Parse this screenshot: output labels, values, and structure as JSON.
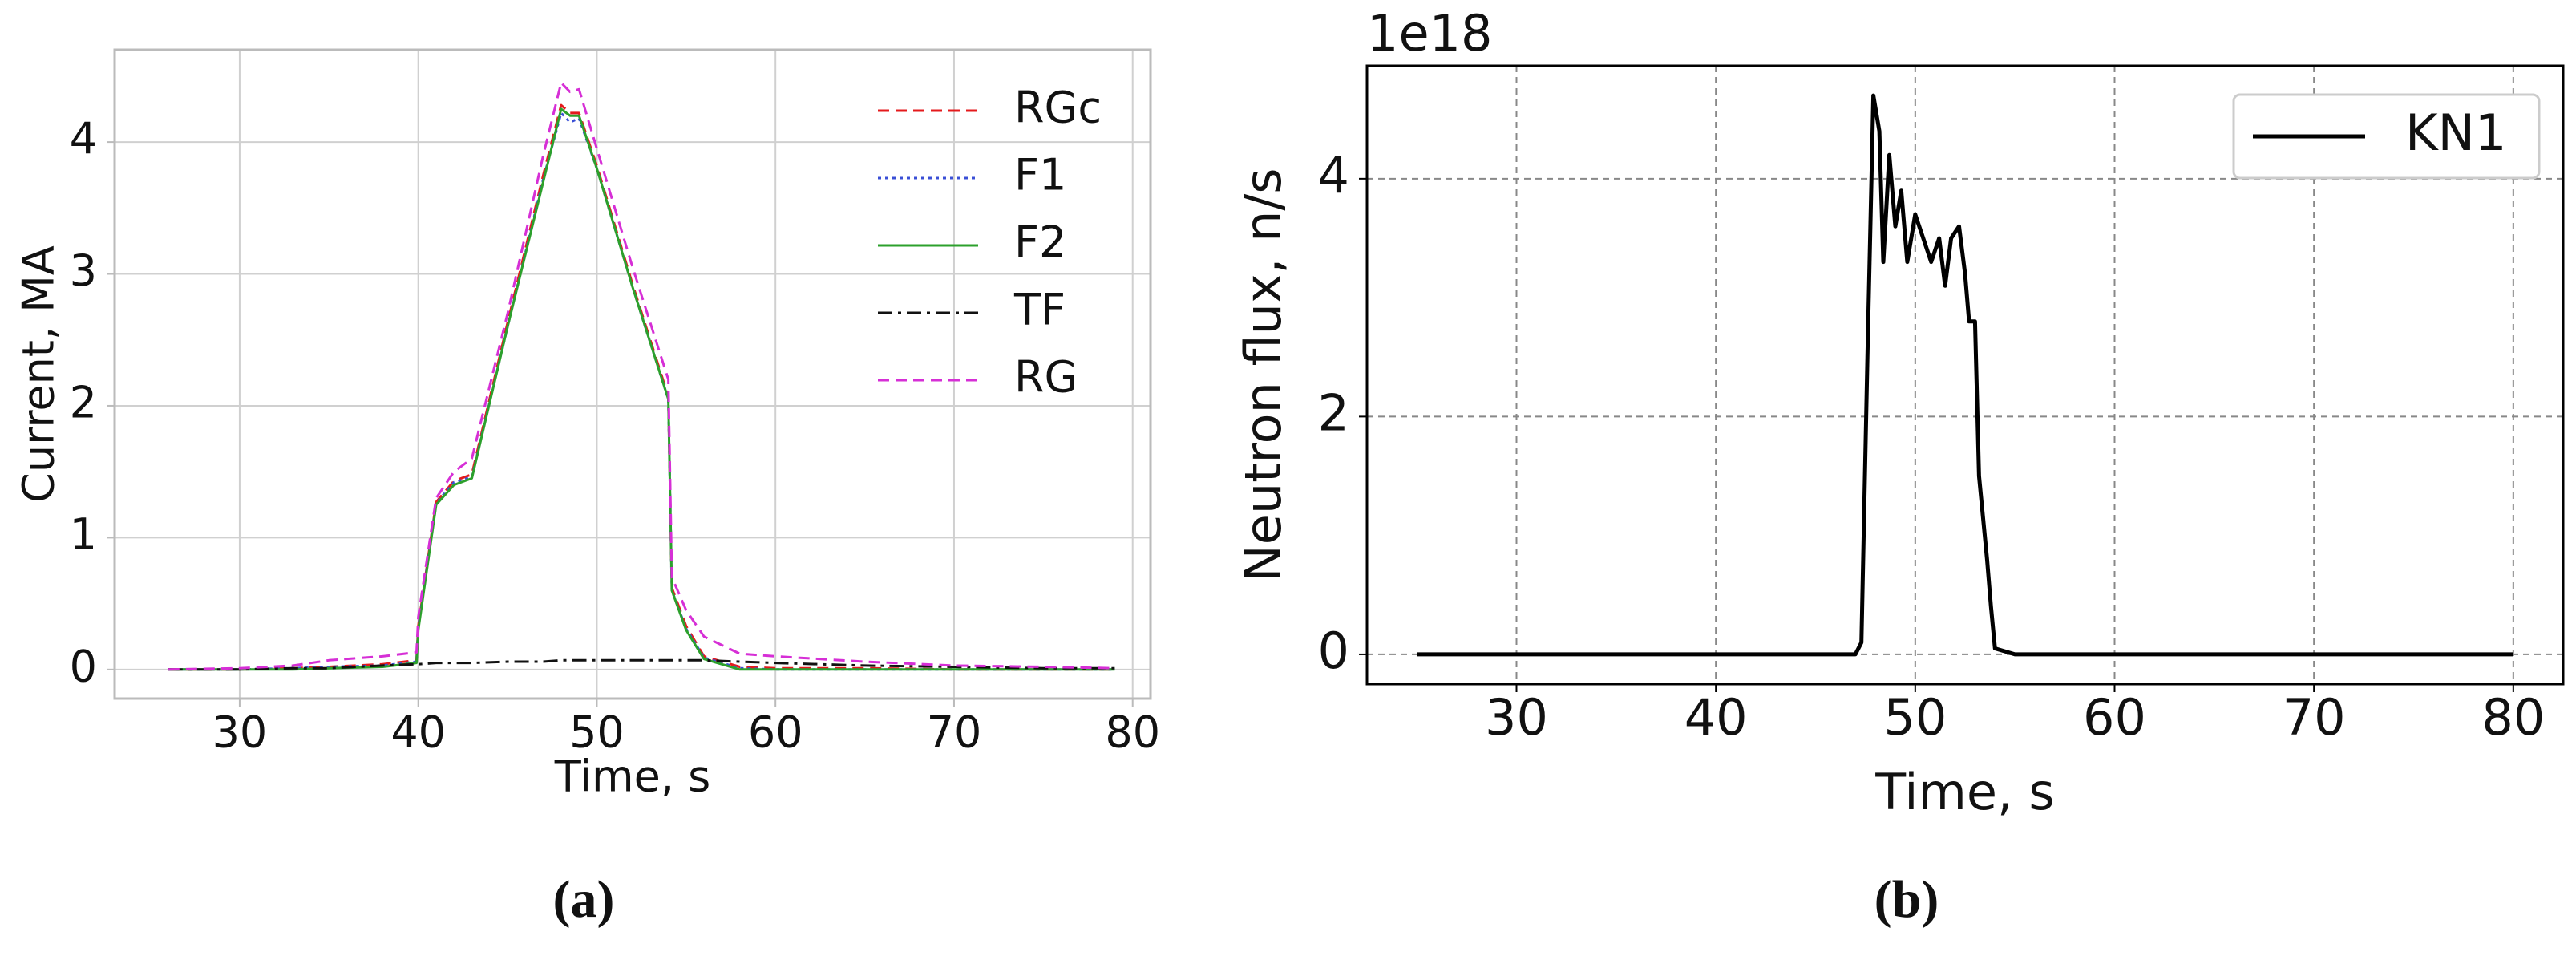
{
  "chart_data": [
    {
      "type": "line",
      "caption": "(a)",
      "xlabel": "Time, s",
      "ylabel": "Current, MA",
      "xlim": [
        23,
        81
      ],
      "ylim": [
        -0.22,
        4.7
      ],
      "xticks": [
        30,
        40,
        50,
        60,
        70,
        80
      ],
      "yticks": [
        0,
        1,
        2,
        3,
        4
      ],
      "grid": true,
      "legend": "upper right",
      "x": [
        26,
        30,
        33,
        35,
        38,
        39.9,
        40,
        41,
        42,
        43,
        45,
        47,
        48,
        48.5,
        49,
        50,
        52,
        54,
        54.2,
        55,
        56,
        58,
        60,
        65,
        70,
        75,
        79
      ],
      "series": [
        {
          "name": "RGc",
          "color": "#e41a1c",
          "style": "dashed",
          "values": [
            0,
            0,
            0.01,
            0.02,
            0.04,
            0.07,
            0.33,
            1.27,
            1.43,
            1.48,
            2.63,
            3.75,
            4.28,
            4.22,
            4.22,
            3.82,
            2.92,
            2.07,
            0.62,
            0.33,
            0.1,
            0.02,
            0.01,
            0.01,
            0,
            0,
            0
          ]
        },
        {
          "name": "F1",
          "color": "#3a4fd6",
          "style": "dotted",
          "values": [
            0,
            0,
            0.01,
            0.02,
            0.03,
            0.06,
            0.32,
            1.26,
            1.42,
            1.46,
            2.6,
            3.72,
            4.22,
            4.15,
            4.18,
            3.8,
            2.9,
            2.05,
            0.6,
            0.31,
            0.09,
            0.01,
            0,
            0,
            0,
            0,
            0
          ]
        },
        {
          "name": "F2",
          "color": "#2ca02c",
          "style": "solid",
          "values": [
            0,
            0,
            0,
            0.01,
            0.02,
            0.05,
            0.3,
            1.25,
            1.4,
            1.45,
            2.6,
            3.7,
            4.25,
            4.2,
            4.2,
            3.8,
            2.9,
            2.05,
            0.6,
            0.3,
            0.08,
            0,
            0,
            0,
            0,
            0,
            0
          ]
        },
        {
          "name": "TF",
          "color": "#111111",
          "style": "dashdot",
          "values": [
            0,
            0,
            0.01,
            0.01,
            0.03,
            0.04,
            0.04,
            0.05,
            0.05,
            0.05,
            0.06,
            0.06,
            0.07,
            0.07,
            0.07,
            0.07,
            0.07,
            0.07,
            0.07,
            0.07,
            0.07,
            0.06,
            0.05,
            0.03,
            0.02,
            0.01,
            0.01
          ]
        },
        {
          "name": "RG",
          "color": "#d62fd6",
          "style": "dashed",
          "values": [
            0,
            0.01,
            0.03,
            0.07,
            0.1,
            0.13,
            0.4,
            1.3,
            1.5,
            1.6,
            2.7,
            3.9,
            4.45,
            4.38,
            4.4,
            3.95,
            3.05,
            2.2,
            0.7,
            0.45,
            0.25,
            0.12,
            0.1,
            0.06,
            0.03,
            0.02,
            0.01
          ]
        }
      ]
    },
    {
      "type": "line",
      "caption": "(b)",
      "xlabel": "Time, s",
      "ylabel": "Neutron flux, n/s",
      "y_offset_label": "1e18",
      "xlim": [
        22.5,
        82.5
      ],
      "ylim": [
        -0.25,
        4.95
      ],
      "xticks": [
        30,
        40,
        50,
        60,
        70,
        80
      ],
      "yticks": [
        0,
        2,
        4
      ],
      "grid": true,
      "legend": "upper right",
      "x": [
        25,
        47,
        47.3,
        47.6,
        47.9,
        48.2,
        48.4,
        48.7,
        49,
        49.3,
        49.6,
        50,
        50.4,
        50.8,
        51.2,
        51.5,
        51.8,
        52.2,
        52.5,
        52.7,
        53,
        53.2,
        53.6,
        53.8,
        54,
        55,
        80
      ],
      "series": [
        {
          "name": "KN1",
          "color": "#000000",
          "style": "solid",
          "values": [
            0,
            0,
            0.1,
            2.5,
            4.7,
            4.4,
            3.3,
            4.2,
            3.6,
            3.9,
            3.3,
            3.7,
            3.5,
            3.3,
            3.5,
            3.1,
            3.5,
            3.6,
            3.2,
            2.8,
            2.8,
            1.5,
            0.8,
            0.4,
            0.05,
            0,
            0
          ]
        }
      ]
    }
  ]
}
